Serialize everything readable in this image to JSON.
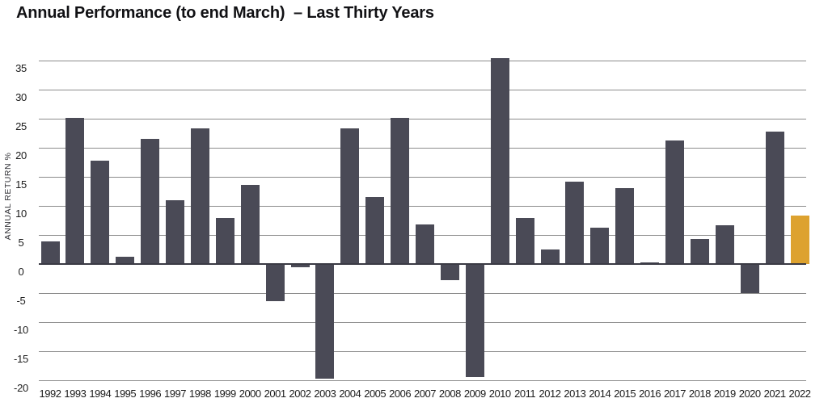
{
  "chart_data": {
    "type": "bar",
    "title": "Annual Performance (to end March)  – Last Thirty Years",
    "ylabel": "ANNUAL RETURN %",
    "xlabel": "",
    "ylim": [
      -20,
      35
    ],
    "ytick_step": 5,
    "yticks": [
      35,
      30,
      25,
      20,
      15,
      10,
      5,
      0,
      -5,
      -10,
      -15,
      -20
    ],
    "grid": true,
    "legend": "none",
    "categories": [
      "1992",
      "1993",
      "1994",
      "1995",
      "1996",
      "1997",
      "1998",
      "1999",
      "2000",
      "2001",
      "2002",
      "2003",
      "2004",
      "2005",
      "2006",
      "2007",
      "2008",
      "2009",
      "2010",
      "2011",
      "2012",
      "2013",
      "2014",
      "2015",
      "2016",
      "2017",
      "2018",
      "2019",
      "2020",
      "2021",
      "2022"
    ],
    "values": [
      3.9,
      25.2,
      17.8,
      1.2,
      21.5,
      11.0,
      23.3,
      7.9,
      13.6,
      -6.4,
      -0.6,
      -19.7,
      23.4,
      11.5,
      25.2,
      6.8,
      -2.8,
      -19.5,
      35.4,
      7.9,
      2.5,
      14.1,
      6.3,
      13.0,
      0.3,
      21.3,
      4.3,
      6.6,
      -5.0,
      22.8,
      8.4
    ],
    "highlight_category": "2022",
    "colors": {
      "bar": "#4a4a56",
      "highlight": "#dda22f",
      "gridline": "#8c8c8c",
      "zero_line": "#3a3a44",
      "text": "#1c1c1c"
    }
  }
}
